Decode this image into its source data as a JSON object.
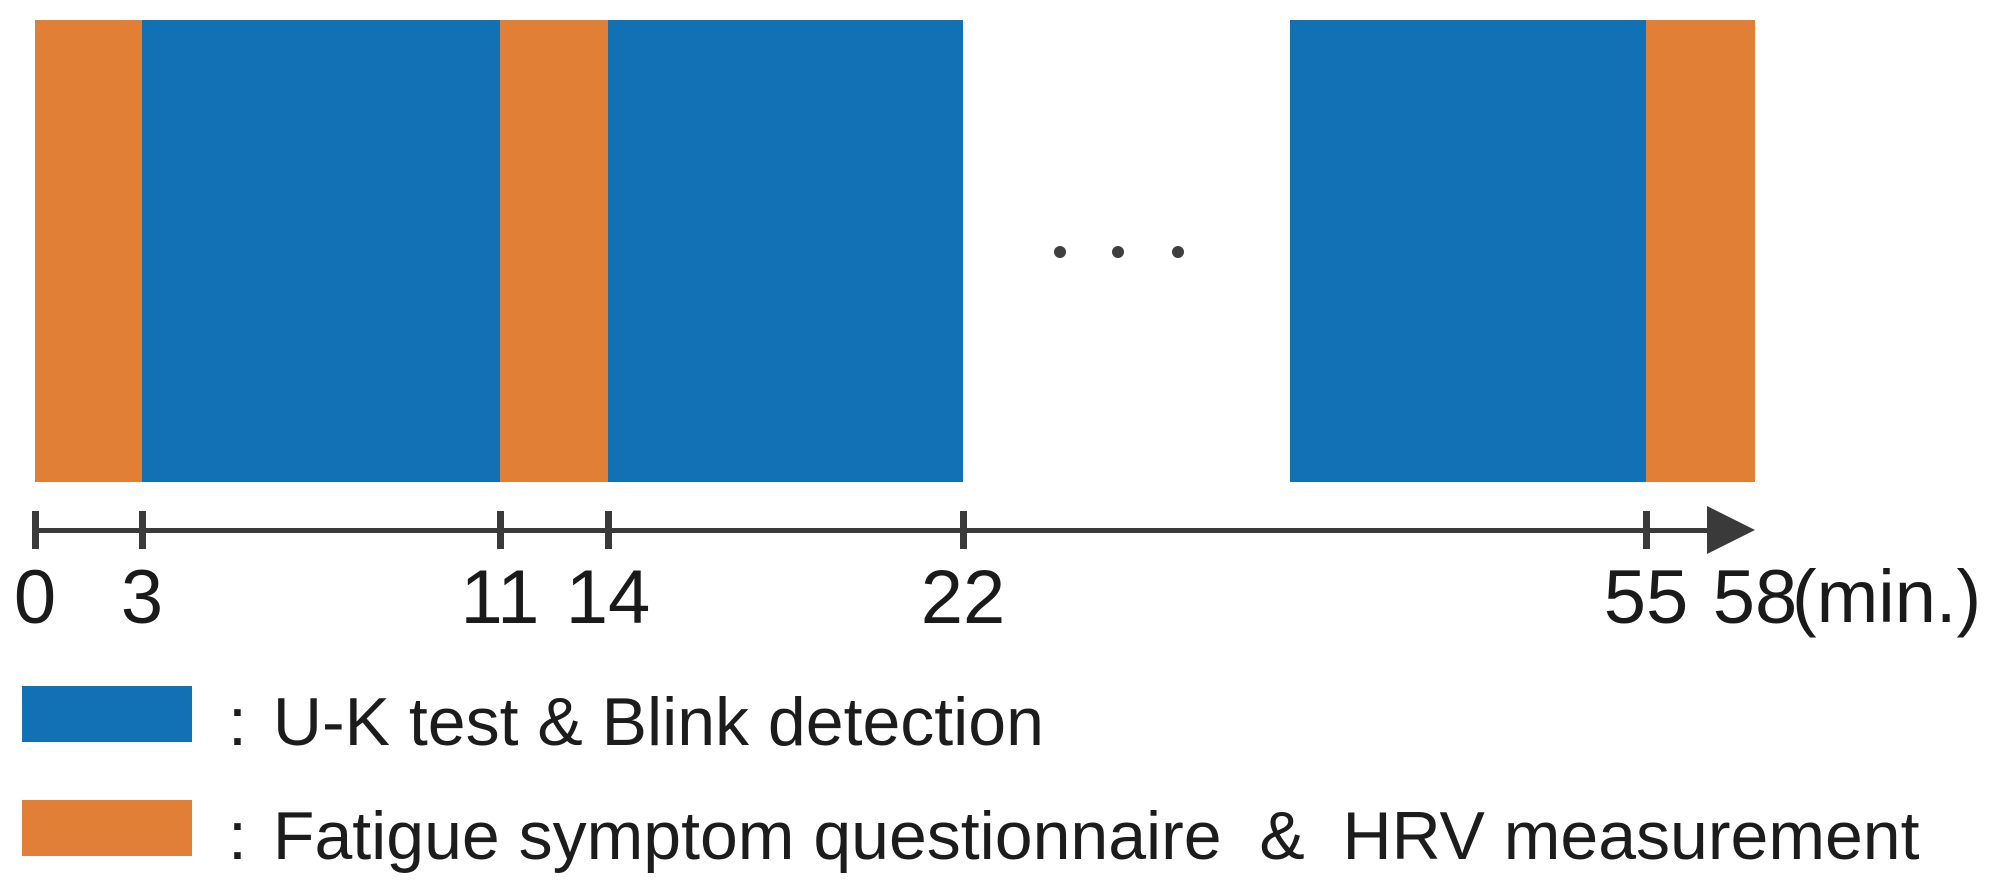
{
  "figure": {
    "kind": "experiment-protocol-timeline"
  },
  "colors": {
    "test_block": "#1271B5",
    "questionnaire_block": "#E07F35",
    "axis": "#3a3a3a",
    "dots": "#3f3f3f",
    "text": "#1c1c1c"
  },
  "timeline": {
    "unit_label": "(min.)",
    "segments": [
      {
        "start_min": 0,
        "end_min": 3,
        "kind": "questionnaire"
      },
      {
        "start_min": 3,
        "end_min": 11,
        "kind": "test"
      },
      {
        "start_min": 11,
        "end_min": 14,
        "kind": "questionnaire"
      },
      {
        "start_min": 14,
        "end_min": 22,
        "kind": "test"
      },
      {
        "start_min": 47,
        "end_min": 55,
        "kind": "test"
      },
      {
        "start_min": 55,
        "end_min": 58,
        "kind": "questionnaire"
      }
    ],
    "ticks_min": [
      0,
      3,
      11,
      14,
      22,
      55
    ],
    "labels": [
      {
        "min": 0,
        "text": "0"
      },
      {
        "min": 3,
        "text": "3"
      },
      {
        "min": 11,
        "text": "11"
      },
      {
        "min": 14,
        "text": "14"
      },
      {
        "min": 22,
        "text": "22"
      },
      {
        "min": 55,
        "text": "55"
      },
      {
        "min": 58,
        "text": "58"
      }
    ],
    "arrow_min": 58,
    "ellipsis": {
      "symbol": "•",
      "count": 3
    }
  },
  "legend": {
    "colon": ":",
    "items": [
      {
        "kind": "test",
        "label": "U-K test & Blink detection"
      },
      {
        "kind": "questionnaire",
        "label": "Fatigue symptom questionnaire  &  HRV measurement"
      }
    ]
  }
}
